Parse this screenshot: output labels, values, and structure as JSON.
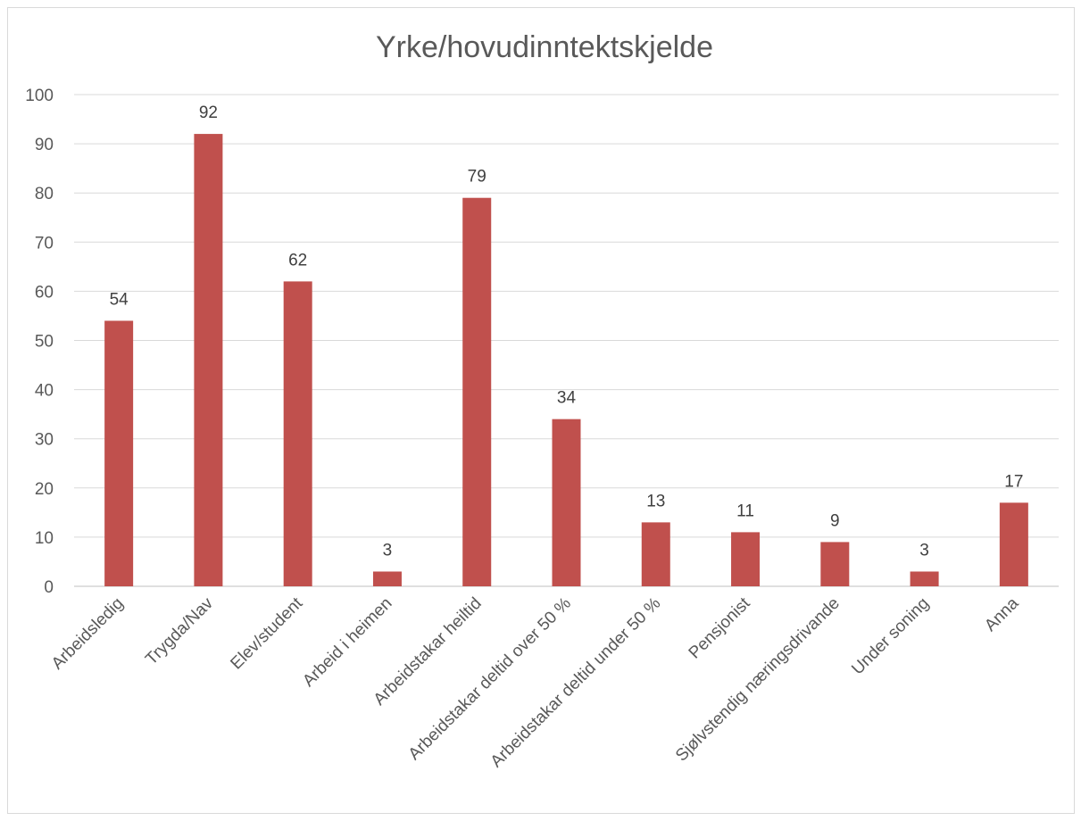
{
  "chart_data": {
    "type": "bar",
    "title": "Yrke/hovudinntektskjelde",
    "xlabel": "",
    "ylabel": "",
    "ylim": [
      0,
      100
    ],
    "yticks": [
      0,
      10,
      20,
      30,
      40,
      50,
      60,
      70,
      80,
      90,
      100
    ],
    "grid": true,
    "legend": "none",
    "bar_color": "#c0504d",
    "categories": [
      "Arbeidsledig",
      "Trygda/Nav",
      "Elev/student",
      "Arbeid i heimen",
      "Arbeidstakar heiltid",
      "Arbeidstakar deltid over 50 %",
      "Arbeidstakar deltid under 50 %",
      "Pensjonist",
      "Sjølvstendig næringsdrivande",
      "Under soning",
      "Anna"
    ],
    "values": [
      54,
      92,
      62,
      3,
      79,
      34,
      13,
      11,
      9,
      3,
      17
    ]
  }
}
